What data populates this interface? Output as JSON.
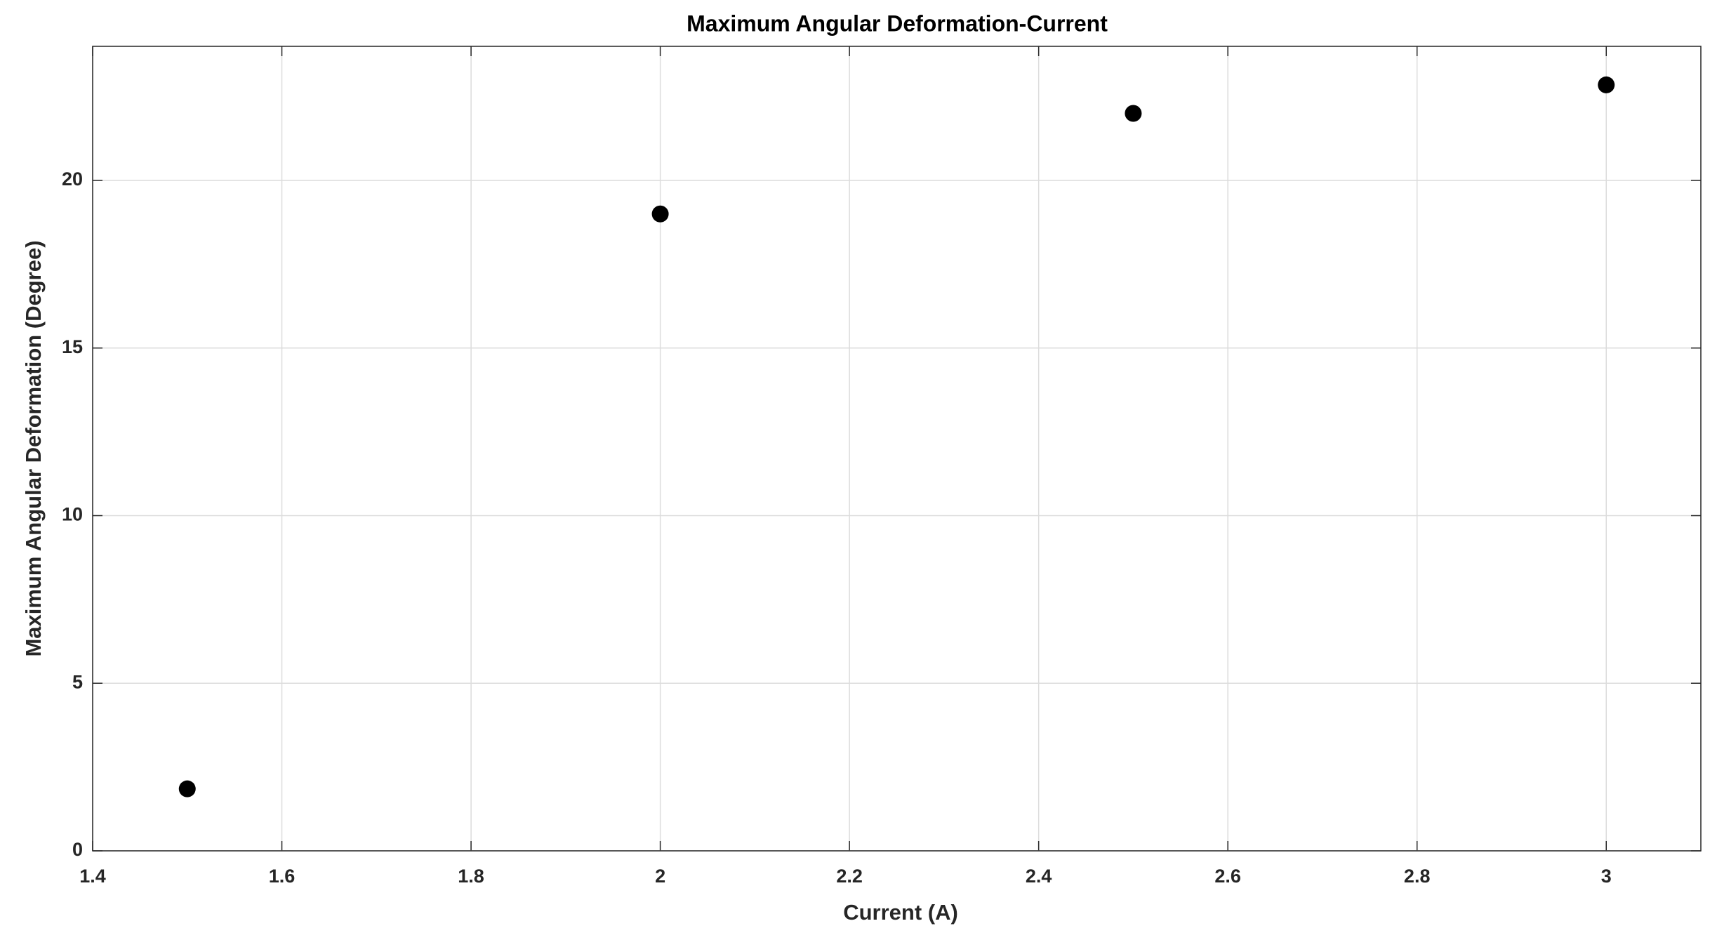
{
  "chart_data": {
    "type": "scatter",
    "title": "Maximum Angular Deformation-Current",
    "x_label": "Current (A)",
    "y_label": "Maximum Angular Deformation (Degree)",
    "x": [
      1.5,
      2,
      2.5,
      3
    ],
    "values": [
      1.85,
      19,
      22,
      22.85
    ],
    "color": "#000000",
    "xlim": [
      1.4,
      3.1
    ],
    "xticks": [
      1.4,
      1.6,
      1.8,
      2,
      2.2,
      2.4,
      2.6,
      2.8,
      3
    ],
    "ylim": [
      0,
      24
    ],
    "yticks": [
      0,
      5,
      10,
      15,
      20
    ],
    "grid": true
  }
}
